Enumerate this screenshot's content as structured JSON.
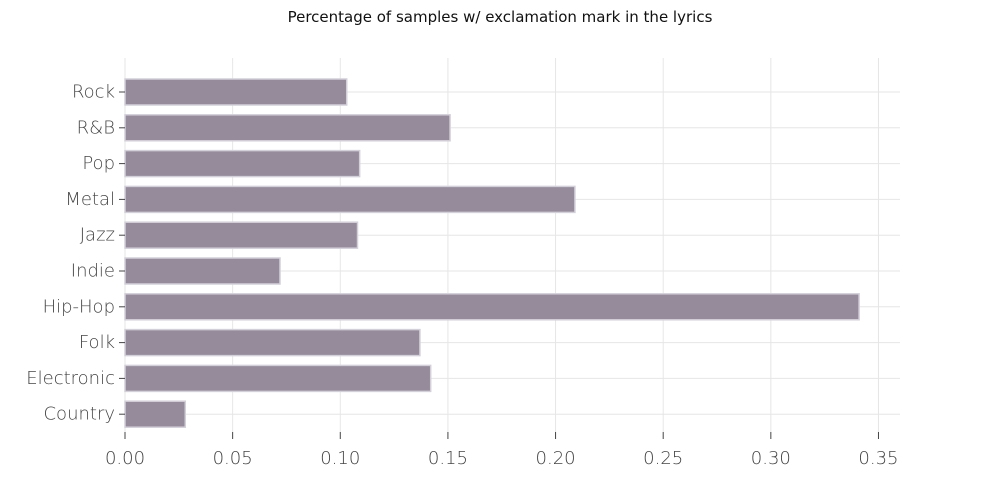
{
  "chart_data": {
    "type": "bar",
    "orientation": "horizontal",
    "title": "Percentage of samples w/ exclamation mark in the lyrics",
    "xlabel": "",
    "ylabel": "",
    "categories": [
      "Rock",
      "R&B",
      "Pop",
      "Metal",
      "Jazz",
      "Indie",
      "Hip-Hop",
      "Folk",
      "Electronic",
      "Country"
    ],
    "values": [
      0.103,
      0.151,
      0.109,
      0.209,
      0.108,
      0.072,
      0.341,
      0.137,
      0.142,
      0.028
    ],
    "xlim": [
      0,
      0.36
    ],
    "xticks": [
      "0.00",
      "0.05",
      "0.10",
      "0.15",
      "0.20",
      "0.25",
      "0.30",
      "0.35"
    ],
    "grid": true,
    "bar_color": "#958b9a",
    "bar_edge_color": "#d4d0da"
  }
}
